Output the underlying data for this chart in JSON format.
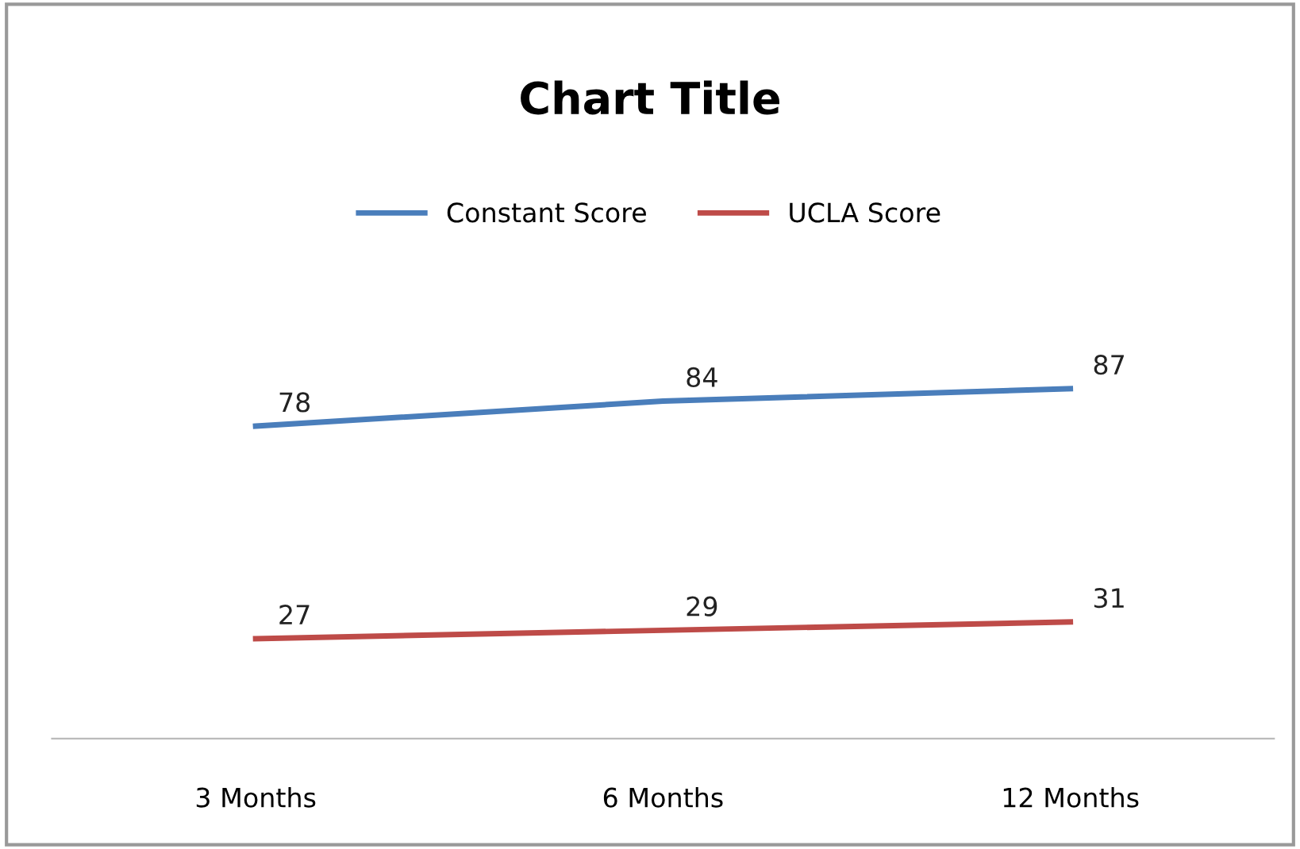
{
  "chart_data": {
    "type": "line",
    "title": "Chart Title",
    "categories": [
      "3 Months",
      "6 Months",
      "12 Months"
    ],
    "series": [
      {
        "name": "Constant Score",
        "color": "#4a7ebb",
        "values": [
          78,
          84,
          87
        ]
      },
      {
        "name": "UCLA Score",
        "color": "#be4b48",
        "values": [
          27,
          29,
          31
        ]
      }
    ],
    "data_labels": true,
    "legend": "top",
    "grid": false,
    "marker": "none",
    "line_style": "solid",
    "tick_labels": "x"
  }
}
